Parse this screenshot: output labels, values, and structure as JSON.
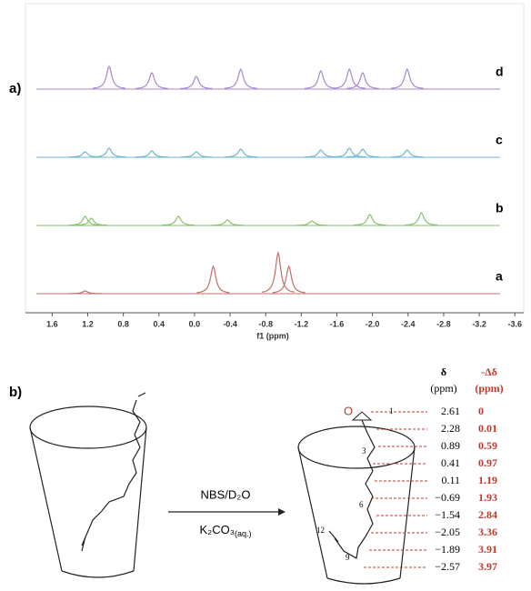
{
  "figure": {
    "panel_a": "a)",
    "panel_b": "b)"
  },
  "chart_data": {
    "type": "spectrum",
    "xlabel": "f1 (ppm)",
    "xlim": [
      1.9,
      -3.7
    ],
    "xticks": [
      1.6,
      1.2,
      0.8,
      0.4,
      {
        "value": 0,
        "label": "0.0"
      },
      -0.4,
      -0.8,
      -1.2,
      -1.6,
      {
        "value": -2,
        "label": "-2.0"
      },
      -2.4,
      -2.8,
      -3.2,
      -3.6
    ],
    "series": [
      {
        "name": "d",
        "color": "#a889c9",
        "x": [
          0.96,
          0.48,
          -0.02,
          -0.52,
          -1.42,
          -1.74,
          -1.89,
          -2.39
        ],
        "values": [
          25,
          18,
          14,
          22,
          20,
          22,
          18,
          22
        ]
      },
      {
        "name": "c",
        "color": "#6fb6cc",
        "x": [
          1.23,
          0.96,
          0.48,
          -0.02,
          -0.52,
          -1.42,
          -1.74,
          -1.89,
          -2.39
        ],
        "values": [
          6,
          10,
          7,
          6,
          9,
          8,
          10,
          9,
          8
        ]
      },
      {
        "name": "b",
        "color": "#8cbf6a",
        "x": [
          1.23,
          1.16,
          0.18,
          -0.37,
          -1.32,
          -1.97,
          -2.55
        ],
        "values": [
          10,
          8,
          10,
          6,
          5,
          12,
          14
        ]
      },
      {
        "name": "a",
        "color": "#c0706a",
        "x": [
          1.23,
          -0.21,
          -0.94,
          -1.06
        ],
        "values": [
          3,
          30,
          45,
          30
        ]
      }
    ]
  },
  "scheme": {
    "reagent_top": "NBS/D₂O",
    "reagent_bottom": {
      "main": "K₂CO₃",
      "sub": "(aq.)"
    },
    "oxygen": "O",
    "atoms": [
      "1",
      "3",
      "6",
      "9",
      "12"
    ],
    "headers": {
      "delta": "δ",
      "delta_unit": "(ppm)",
      "shift": "-Δδ",
      "shift_unit": "(ppm)"
    },
    "rows": [
      [
        "2.61",
        "0"
      ],
      [
        "2.28",
        "0.01"
      ],
      [
        "0.89",
        "0.59"
      ],
      [
        "0.41",
        "0.97"
      ],
      [
        "0.11",
        "1.19"
      ],
      [
        "−0.69",
        "1.93"
      ],
      [
        "−1.54",
        "2.84"
      ],
      [
        "−2.05",
        "3.36"
      ],
      [
        "−1.89",
        "3.91"
      ],
      [
        "−2.57",
        "3.97"
      ]
    ]
  }
}
